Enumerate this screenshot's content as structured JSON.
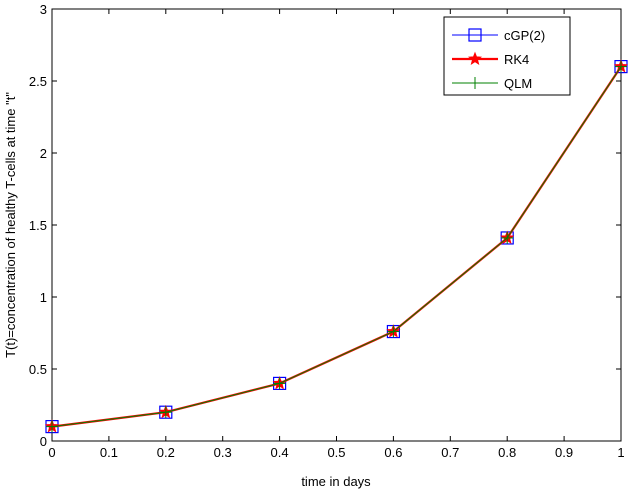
{
  "chart_data": {
    "type": "line",
    "xlabel": "time in days",
    "ylabel": "T(t)=concentration of healthy T-cells at time \"t\"",
    "xlim": [
      0,
      1
    ],
    "ylim": [
      0,
      3
    ],
    "x_ticks": [
      "0",
      "0.1",
      "0.2",
      "0.3",
      "0.4",
      "0.5",
      "0.6",
      "0.7",
      "0.8",
      "0.9",
      "1"
    ],
    "y_ticks": [
      "0",
      "0.5",
      "1",
      "1.5",
      "2",
      "2.5",
      "3"
    ],
    "grid": false,
    "legend_position": "top-right",
    "x": [
      0,
      0.2,
      0.4,
      0.6,
      0.8,
      1.0
    ],
    "series": [
      {
        "name": "cGP(2)",
        "values": [
          0.1,
          0.2,
          0.4,
          0.76,
          1.41,
          2.6
        ],
        "color": "#0000ff",
        "marker": "square"
      },
      {
        "name": "RK4",
        "values": [
          0.1,
          0.2,
          0.4,
          0.76,
          1.41,
          2.6
        ],
        "color": "#ff0000",
        "marker": "star"
      },
      {
        "name": "QLM",
        "values": [
          0.1,
          0.2,
          0.4,
          0.76,
          1.41,
          2.6
        ],
        "color": "#008000",
        "marker": "plus"
      }
    ]
  }
}
